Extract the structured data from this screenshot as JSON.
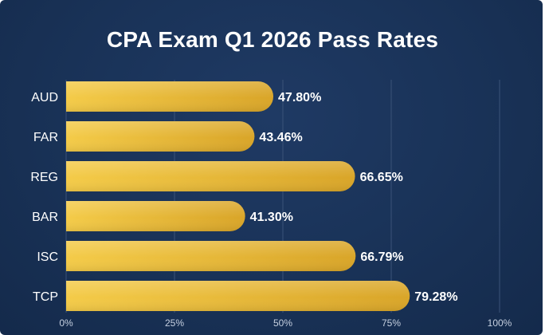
{
  "chart_data": {
    "type": "bar",
    "orientation": "horizontal",
    "title": "CPA Exam Q1 2026 Pass Rates",
    "xlabel": "",
    "ylabel": "",
    "categories": [
      "AUD",
      "FAR",
      "REG",
      "BAR",
      "ISC",
      "TCP"
    ],
    "values": [
      47.8,
      43.46,
      66.65,
      41.3,
      66.79,
      79.28
    ],
    "value_labels": [
      "47.80%",
      "43.46%",
      "66.65%",
      "41.30%",
      "66.79%",
      "79.28%"
    ],
    "xlim": [
      0,
      100
    ],
    "x_ticks": [
      0,
      25,
      50,
      75,
      100
    ],
    "x_tick_labels": [
      "0%",
      "25%",
      "50%",
      "75%",
      "100%"
    ],
    "grid": true,
    "legend": "none",
    "colors": {
      "background": "#193257",
      "bar_start": "#f4cb48",
      "bar_end": "#d9a528",
      "text": "#ffffff",
      "grid": "#3a5278"
    }
  }
}
